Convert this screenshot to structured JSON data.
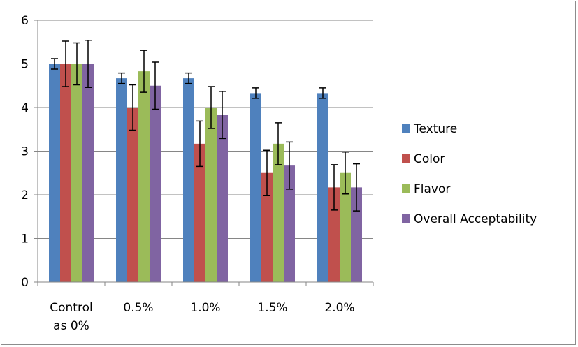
{
  "chart_data": {
    "type": "bar",
    "categories": [
      [
        "Control",
        "as 0%"
      ],
      [
        "0.5%"
      ],
      [
        "1.0%"
      ],
      [
        "1.5%"
      ],
      [
        "2.0%"
      ]
    ],
    "ylim": [
      0,
      6
    ],
    "yticks": [
      0,
      1,
      2,
      3,
      4,
      5,
      6
    ],
    "grid": true,
    "legend_position": "right",
    "series": [
      {
        "name": "Texture",
        "color": "#4f81bd",
        "values": [
          5.0,
          4.67,
          4.67,
          4.33,
          4.33
        ],
        "errors": [
          0.12,
          0.12,
          0.12,
          0.12,
          0.12
        ]
      },
      {
        "name": "Color",
        "color": "#c0504d",
        "values": [
          5.0,
          4.0,
          3.17,
          2.5,
          2.17
        ],
        "errors": [
          0.52,
          0.52,
          0.52,
          0.52,
          0.52
        ]
      },
      {
        "name": "Flavor",
        "color": "#9bbb59",
        "values": [
          5.0,
          4.83,
          4.0,
          3.17,
          2.5
        ],
        "errors": [
          0.48,
          0.48,
          0.48,
          0.48,
          0.48
        ]
      },
      {
        "name": "Overall Acceptability",
        "color": "#8064a2",
        "values": [
          5.0,
          4.5,
          3.83,
          2.67,
          2.17
        ],
        "errors": [
          0.54,
          0.54,
          0.54,
          0.54,
          0.54
        ]
      }
    ]
  }
}
